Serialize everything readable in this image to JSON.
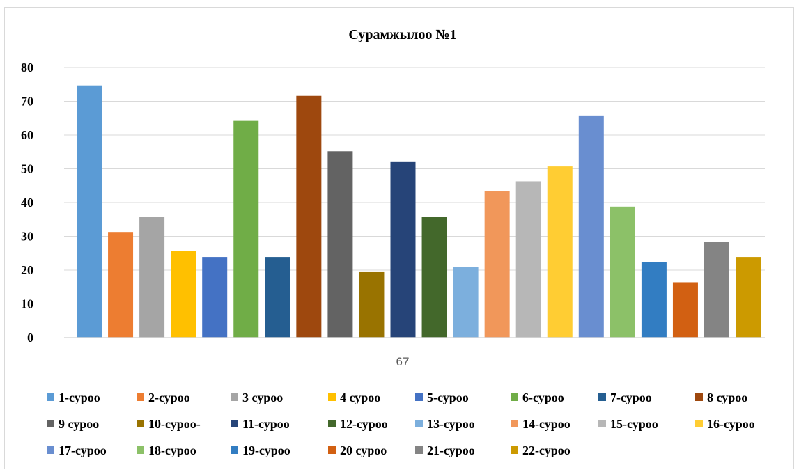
{
  "chart_data": {
    "type": "bar",
    "title": "Сурамжылоо №1",
    "categories": [
      "67"
    ],
    "ylim": [
      0,
      80
    ],
    "yticks": [
      0,
      10,
      20,
      30,
      40,
      50,
      60,
      70,
      80
    ],
    "grid": true,
    "legend_position": "bottom",
    "series": [
      {
        "name": "1-сурoo",
        "values": [
          74.7
        ],
        "color": "#5b9bd5"
      },
      {
        "name": "2-сурoo",
        "values": [
          31.3
        ],
        "color": "#ed7d31"
      },
      {
        "name": "3 сурoo",
        "values": [
          35.8
        ],
        "color": "#a5a5a5"
      },
      {
        "name": "4 сурoo",
        "values": [
          25.6
        ],
        "color": "#ffc000"
      },
      {
        "name": "5-сурoo",
        "values": [
          23.9
        ],
        "color": "#4472c4"
      },
      {
        "name": "6-сурoo",
        "values": [
          64.2
        ],
        "color": "#70ad47"
      },
      {
        "name": "7-сурoo",
        "values": [
          23.9
        ],
        "color": "#255e91"
      },
      {
        "name": "8 сурoo",
        "values": [
          71.6
        ],
        "color": "#9e480e"
      },
      {
        "name": "9 сурoo",
        "values": [
          55.2
        ],
        "color": "#636363"
      },
      {
        "name": "10-сурoo-",
        "values": [
          19.6
        ],
        "color": "#997300"
      },
      {
        "name": "11-сурoo",
        "values": [
          52.2
        ],
        "color": "#264478"
      },
      {
        "name": "12-сурoo",
        "values": [
          35.8
        ],
        "color": "#43682b"
      },
      {
        "name": "13-сурoo",
        "values": [
          20.9
        ],
        "color": "#7cafdd"
      },
      {
        "name": "14-сурoo",
        "values": [
          43.3
        ],
        "color": "#f1975a"
      },
      {
        "name": "15-сурoo",
        "values": [
          46.3
        ],
        "color": "#b7b7b7"
      },
      {
        "name": "16-сурoo",
        "values": [
          50.7
        ],
        "color": "#ffcd33"
      },
      {
        "name": "17-сурoo",
        "values": [
          65.8
        ],
        "color": "#698ed0"
      },
      {
        "name": "18-сурoo",
        "values": [
          38.8
        ],
        "color": "#8cc168"
      },
      {
        "name": "19-сурoo",
        "values": [
          22.4
        ],
        "color": "#327dc2"
      },
      {
        "name": "20 сурoo",
        "values": [
          16.4
        ],
        "color": "#d26012"
      },
      {
        "name": "21-сурoo",
        "values": [
          28.4
        ],
        "color": "#848484"
      },
      {
        "name": "22-сурoo",
        "values": [
          23.9
        ],
        "color": "#cc9a00"
      }
    ]
  }
}
